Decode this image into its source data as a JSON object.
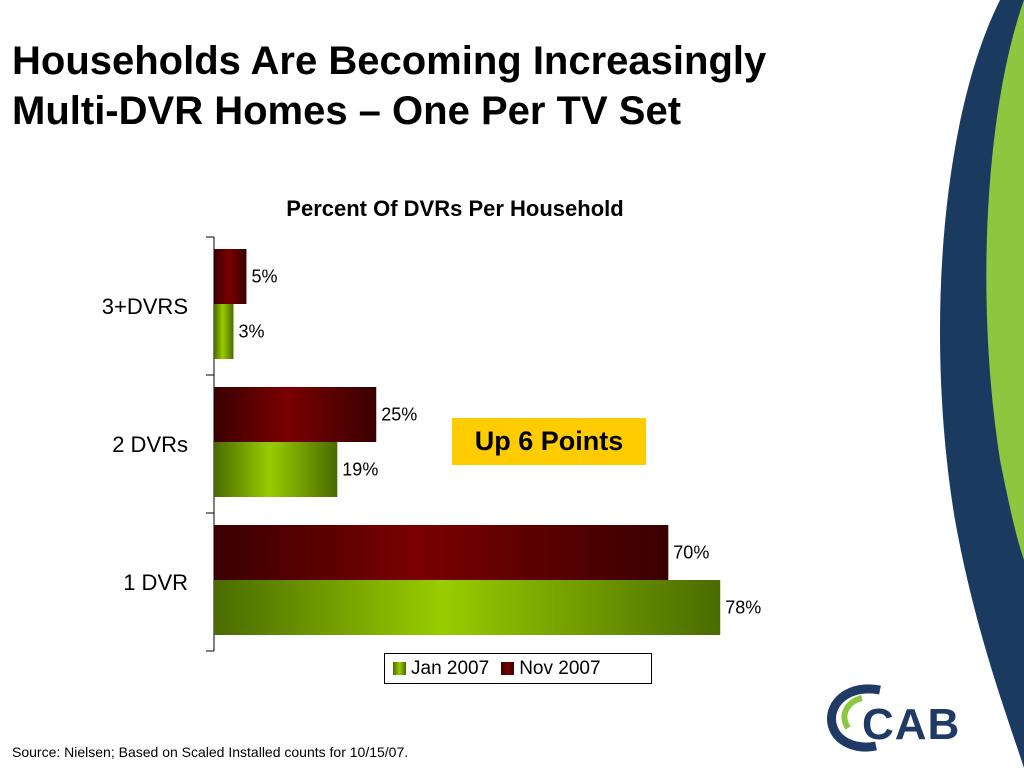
{
  "slide": {
    "title_line1": "Households Are Becoming Increasingly",
    "title_line2": "Multi-DVR Homes – One Per TV Set",
    "callout": "Up 6 Points",
    "source": "Source: Nielsen;  Based on Scaled Installed counts for 10/15/07.",
    "logo_text": "CAB"
  },
  "colors": {
    "navy": "#1b3a5f",
    "green": "#8dc63f",
    "bar_green": "#99cc00",
    "bar_red": "#7a0000",
    "callout": "#ffcc00"
  },
  "chart_data": {
    "type": "bar",
    "orientation": "horizontal",
    "title": "Percent Of DVRs Per Household",
    "categories": [
      "3+DVRS",
      "2 DVRs",
      "1 DVR"
    ],
    "series": [
      {
        "name": "Nov 2007",
        "values": [
          5,
          25,
          70
        ],
        "labels": [
          "5%",
          "25%",
          "70%"
        ],
        "color": "#7a0000"
      },
      {
        "name": "Jan 2007",
        "values": [
          3,
          19,
          78
        ],
        "labels": [
          "3%",
          "19%",
          "78%"
        ],
        "color": "#99cc00"
      }
    ],
    "xlim": [
      0,
      100
    ],
    "grid": false,
    "legend": [
      "Jan 2007",
      "Nov 2007"
    ],
    "legend_position": "bottom"
  }
}
